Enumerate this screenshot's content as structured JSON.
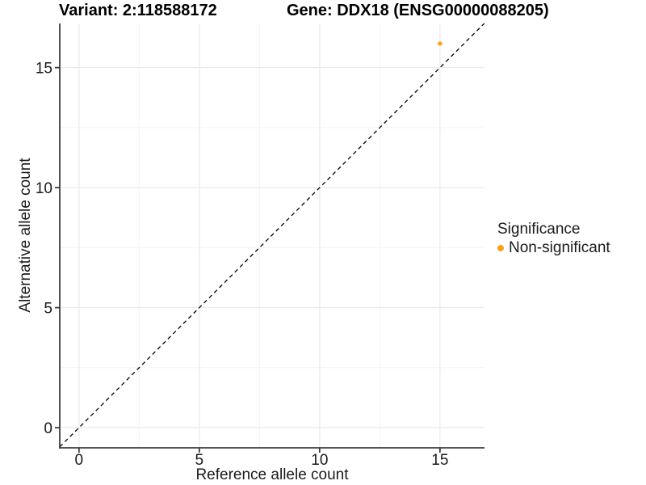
{
  "title": {
    "variant": "Variant: 2:118588172",
    "gene": "Gene: DDX18 (ENSG00000088205)"
  },
  "chart_data": {
    "type": "scatter",
    "title": "Variant: 2:118588172   Gene: DDX18 (ENSG00000088205)",
    "xlabel": "Reference allele count",
    "ylabel": "Alternative allele count",
    "xlim": [
      -0.8,
      16.85
    ],
    "ylim": [
      -0.84,
      16.84
    ],
    "x_ticks": [
      0,
      5,
      10,
      15
    ],
    "y_ticks": [
      0,
      5,
      10,
      15
    ],
    "x_minor_ticks": [
      2.5,
      7.5,
      12.5
    ],
    "y_minor_ticks": [
      2.5,
      7.5,
      12.5
    ],
    "grid": true,
    "series": [
      {
        "name": "Non-significant",
        "color": "#FAA21B",
        "point_radius": 2.7,
        "points": [
          {
            "x": 15,
            "y": 16
          }
        ]
      }
    ],
    "reference_line": {
      "type": "identity",
      "style": "dashed",
      "color": "#000000"
    },
    "legend": {
      "title": "Significance",
      "position": "right",
      "entries": [
        {
          "label": "Non-significant",
          "color": "#FAA21B"
        }
      ]
    }
  },
  "colors": {
    "background": "#FFFFFF",
    "grid_major": "#EBEBEB",
    "grid_minor": "#F4F4F4",
    "axis_line": "#3C3C3C",
    "tick_text": "#1A1A1A"
  }
}
